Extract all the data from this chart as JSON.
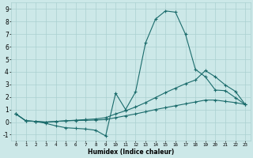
{
  "xlabel": "Humidex (Indice chaleur)",
  "xlim": [
    -0.5,
    23.5
  ],
  "ylim": [
    -1.5,
    9.5
  ],
  "xticks": [
    0,
    1,
    2,
    3,
    4,
    5,
    6,
    7,
    8,
    9,
    10,
    11,
    12,
    13,
    14,
    15,
    16,
    17,
    18,
    19,
    20,
    21,
    22,
    23
  ],
  "yticks": [
    -1,
    0,
    1,
    2,
    3,
    4,
    5,
    6,
    7,
    8,
    9
  ],
  "background_color": "#cce8e8",
  "grid_color": "#aad0d0",
  "line_color": "#1a6b6b",
  "line1_x": [
    0,
    1,
    2,
    3,
    4,
    5,
    6,
    7,
    8,
    9,
    10,
    11,
    12,
    13,
    14,
    15,
    16,
    17,
    18,
    19,
    20,
    21,
    22,
    23
  ],
  "line1_y": [
    0.65,
    0.1,
    0.05,
    -0.1,
    -0.3,
    -0.45,
    -0.5,
    -0.55,
    -0.65,
    -1.1,
    2.3,
    1.0,
    2.4,
    6.3,
    8.2,
    8.85,
    8.75,
    7.0,
    4.2,
    3.6,
    2.55,
    2.5,
    1.95,
    1.4
  ],
  "line2_x": [
    0,
    1,
    2,
    3,
    4,
    5,
    6,
    7,
    8,
    9,
    10,
    11,
    12,
    13,
    14,
    15,
    16,
    17,
    18,
    19,
    20,
    21,
    22,
    23
  ],
  "line2_y": [
    0.65,
    0.1,
    0.05,
    0.0,
    0.05,
    0.1,
    0.15,
    0.2,
    0.25,
    0.35,
    0.65,
    0.9,
    1.2,
    1.55,
    1.95,
    2.35,
    2.7,
    3.05,
    3.35,
    4.1,
    3.6,
    2.95,
    2.45,
    1.4
  ],
  "line3_x": [
    0,
    1,
    2,
    3,
    4,
    5,
    6,
    7,
    8,
    9,
    10,
    11,
    12,
    13,
    14,
    15,
    16,
    17,
    18,
    19,
    20,
    21,
    22,
    23
  ],
  "line3_y": [
    0.65,
    0.1,
    0.05,
    0.0,
    0.05,
    0.1,
    0.12,
    0.14,
    0.16,
    0.2,
    0.35,
    0.5,
    0.65,
    0.82,
    1.0,
    1.15,
    1.3,
    1.45,
    1.6,
    1.75,
    1.75,
    1.65,
    1.55,
    1.4
  ]
}
